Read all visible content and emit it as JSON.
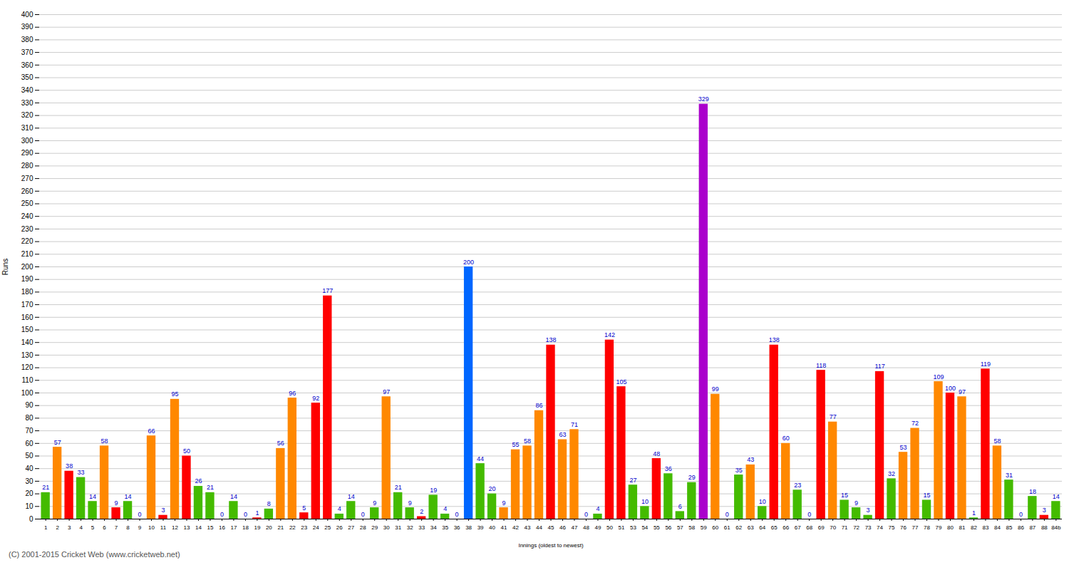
{
  "chart_data": {
    "type": "bar",
    "xlabel": "Innings (oldest to newest)",
    "ylabel": "Runs",
    "caption": "(C) 2001-2015 Cricket Web (www.cricketweb.net)",
    "categories": [
      "1",
      "2",
      "3",
      "4",
      "5",
      "6",
      "7",
      "8",
      "9",
      "10",
      "11",
      "12",
      "13",
      "14",
      "15",
      "16",
      "17",
      "18",
      "19",
      "20",
      "21",
      "22",
      "23",
      "24",
      "25",
      "26",
      "27",
      "28",
      "29",
      "30",
      "31",
      "32",
      "33",
      "34",
      "35",
      "36",
      "38",
      "39",
      "40",
      "41",
      "42",
      "43",
      "44",
      "45",
      "46",
      "47",
      "48",
      "49",
      "50",
      "51",
      "53",
      "54",
      "55",
      "56",
      "57",
      "58",
      "59",
      "60",
      "61",
      "62",
      "63",
      "64",
      "65",
      "66",
      "67",
      "68",
      "69",
      "70",
      "71",
      "72",
      "73",
      "74",
      "75",
      "76",
      "77",
      "78",
      "79",
      "80",
      "81",
      "82",
      "83",
      "84",
      "85",
      "86",
      "87",
      "88",
      "84b"
    ],
    "values": [
      21,
      57,
      38,
      33,
      14,
      58,
      9,
      14,
      0,
      66,
      3,
      95,
      50,
      26,
      21,
      0,
      14,
      0,
      1,
      8,
      56,
      96,
      5,
      92,
      177,
      4,
      14,
      0,
      9,
      97,
      21,
      9,
      2,
      19,
      4,
      0,
      200,
      44,
      20,
      9,
      55,
      58,
      86,
      138,
      63,
      71,
      0,
      4,
      142,
      105,
      27,
      10,
      48,
      36,
      6,
      29,
      329,
      99,
      0,
      35,
      43,
      10,
      138,
      60,
      23,
      0,
      118,
      77,
      15,
      9,
      3,
      117,
      32,
      53,
      72,
      15,
      109,
      100,
      97,
      1,
      119,
      58,
      31,
      0,
      18,
      3,
      14
    ],
    "colors": [
      "#44bb00",
      "#ff8800",
      "#ff0000",
      "#44bb00",
      "#44bb00",
      "#ff8800",
      "#ff0000",
      "#44bb00",
      "#ff8800",
      "#ff8800",
      "#ff0000",
      "#ff8800",
      "#ff0000",
      "#44bb00",
      "#44bb00",
      "#44bb00",
      "#44bb00",
      "#44bb00",
      "#ff0000",
      "#44bb00",
      "#ff8800",
      "#ff8800",
      "#ff0000",
      "#ff0000",
      "#ff0000",
      "#44bb00",
      "#44bb00",
      "#44bb00",
      "#44bb00",
      "#ff8800",
      "#44bb00",
      "#44bb00",
      "#ff0000",
      "#44bb00",
      "#44bb00",
      "#44bb00",
      "#0066ff",
      "#44bb00",
      "#44bb00",
      "#ff8800",
      "#ff8800",
      "#ff8800",
      "#ff8800",
      "#ff0000",
      "#ff8800",
      "#ff8800",
      "#44bb00",
      "#44bb00",
      "#ff0000",
      "#ff0000",
      "#44bb00",
      "#44bb00",
      "#ff0000",
      "#44bb00",
      "#44bb00",
      "#44bb00",
      "#aa00cc",
      "#ff8800",
      "#44bb00",
      "#44bb00",
      "#ff8800",
      "#44bb00",
      "#ff0000",
      "#ff8800",
      "#44bb00",
      "#44bb00",
      "#ff0000",
      "#ff8800",
      "#44bb00",
      "#44bb00",
      "#44bb00",
      "#ff0000",
      "#44bb00",
      "#ff8800",
      "#ff8800",
      "#44bb00",
      "#ff8800",
      "#ff0000",
      "#ff8800",
      "#44bb00",
      "#ff0000",
      "#ff8800",
      "#44bb00",
      "#44bb00",
      "#44bb00",
      "#ff0000",
      "#44bb00"
    ],
    "ylim": [
      0,
      400
    ],
    "yticks": [
      0,
      10,
      20,
      30,
      40,
      50,
      60,
      70,
      80,
      90,
      100,
      110,
      120,
      130,
      140,
      150,
      160,
      170,
      180,
      190,
      200,
      210,
      220,
      230,
      240,
      250,
      260,
      270,
      280,
      290,
      300,
      310,
      320,
      330,
      340,
      350,
      360,
      370,
      380,
      390,
      400
    ],
    "grid": true,
    "data_labels": true
  }
}
